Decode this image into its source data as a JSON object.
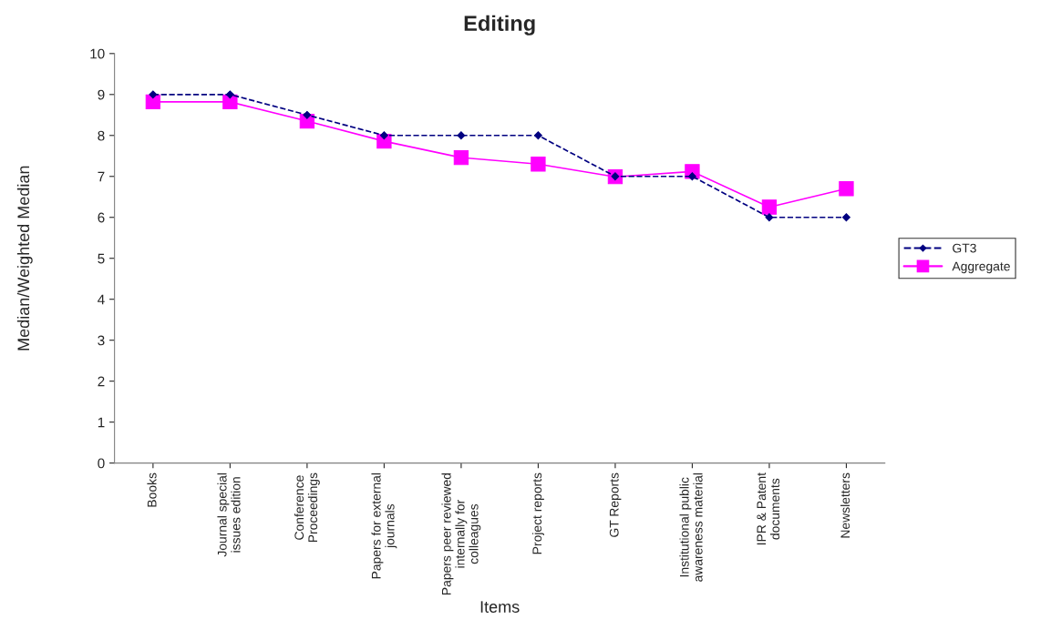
{
  "chart_data": {
    "type": "line",
    "title": "Editing",
    "xlabel": "Items",
    "ylabel": "Median/Weighted Median",
    "categories": [
      "Books",
      "Journal special\nissues edition",
      "Conference\nProceedings",
      "Papers for external\njournals",
      "Papers peer reviewed\ninternally for\ncolleagues",
      "Project reports",
      "GT Reports",
      "Institutional public\nawareness material",
      "IPR & Patent\ndocuments",
      "Newsletters"
    ],
    "series": [
      {
        "name": "GT3",
        "color": "#000080",
        "marker": "diamond",
        "line_style": "dashed",
        "values": [
          9,
          9,
          8.5,
          8,
          8,
          8,
          7,
          7,
          6,
          6
        ]
      },
      {
        "name": "Aggregate",
        "color": "#ff00ff",
        "marker": "square",
        "line_style": "solid",
        "values": [
          8.82,
          8.82,
          8.35,
          7.86,
          7.46,
          7.3,
          6.99,
          7.12,
          6.25,
          6.7
        ]
      }
    ],
    "ylim": [
      0,
      10
    ],
    "yticks": [
      0,
      1,
      2,
      3,
      4,
      5,
      6,
      7,
      8,
      9,
      10
    ],
    "grid": false,
    "legend": "right"
  }
}
